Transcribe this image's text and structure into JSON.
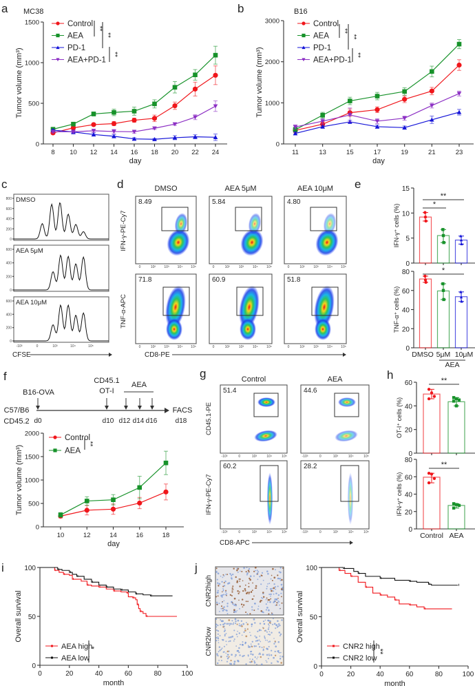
{
  "panel_letters": [
    "a",
    "b",
    "c",
    "d",
    "e",
    "f",
    "g",
    "h",
    "i",
    "j"
  ],
  "colors": {
    "control": "#f0161b",
    "aea": "#17922a",
    "pd1": "#1414d8",
    "aea_pd1": "#8c2fc4",
    "low": "#111111",
    "high": "#f0161b"
  },
  "chart_data": [
    {
      "id": "a",
      "type": "line",
      "title": "MC38",
      "xlabel": "day",
      "ylabel": "Tumor volume (mm³)",
      "x": [
        8,
        10,
        12,
        14,
        16,
        18,
        20,
        22,
        24
      ],
      "ylim": [
        0,
        1500
      ],
      "yticks": [
        0,
        500,
        1000,
        1500
      ],
      "legend_placement": "top-left",
      "series": [
        {
          "name": "Control",
          "marker": "circle",
          "values": [
            136,
            198,
            238,
            250,
            292,
            315,
            470,
            675,
            845
          ],
          "err": [
            15,
            20,
            15,
            25,
            25,
            40,
            45,
            85,
            115
          ]
        },
        {
          "name": "AEA",
          "marker": "square",
          "values": [
            181,
            244,
            369,
            388,
            403,
            493,
            697,
            850,
            1092
          ],
          "err": [
            15,
            20,
            25,
            40,
            50,
            50,
            70,
            65,
            110
          ]
        },
        {
          "name": "PD-1",
          "marker": "triangle-up",
          "values": [
            170,
            147,
            116,
            94,
            62,
            57,
            77,
            88,
            82
          ],
          "err": [
            10,
            25,
            20,
            20,
            15,
            10,
            25,
            25,
            40
          ]
        },
        {
          "name": "AEA+PD-1",
          "marker": "triangle-down",
          "values": [
            150,
            150,
            162,
            153,
            150,
            193,
            244,
            329,
            465
          ],
          "err": [
            15,
            15,
            20,
            25,
            20,
            15,
            15,
            30,
            65
          ]
        }
      ],
      "significance": [
        "**",
        "**",
        "**"
      ]
    },
    {
      "id": "b",
      "type": "line",
      "title": "B16",
      "xlabel": "day",
      "ylabel": "Tumor volume (mm³)",
      "x": [
        11,
        13,
        15,
        17,
        19,
        21,
        23
      ],
      "ylim": [
        0,
        3000
      ],
      "yticks": [
        0,
        1000,
        2000,
        3000
      ],
      "legend_placement": "top-left",
      "series": [
        {
          "name": "Control",
          "marker": "circle",
          "values": [
            330,
            481,
            761,
            833,
            1086,
            1287,
            1919
          ],
          "err": [
            60,
            60,
            90,
            70,
            80,
            90,
            130
          ]
        },
        {
          "name": "AEA",
          "marker": "square",
          "values": [
            347,
            700,
            1046,
            1164,
            1276,
            1763,
            2429
          ],
          "err": [
            60,
            70,
            90,
            90,
            90,
            130,
            110
          ]
        },
        {
          "name": "PD-1",
          "marker": "triangle-up",
          "values": [
            257,
            420,
            537,
            420,
            397,
            588,
            772
          ],
          "err": [
            40,
            40,
            40,
            40,
            40,
            90,
            70
          ]
        },
        {
          "name": "AEA+PD-1",
          "marker": "triangle-down",
          "values": [
            414,
            554,
            705,
            554,
            627,
            935,
            1226
          ],
          "err": [
            50,
            60,
            170,
            60,
            50,
            60,
            60
          ]
        }
      ],
      "significance": [
        "**",
        "**",
        "**"
      ]
    },
    {
      "id": "e-ifn",
      "type": "bar",
      "ylabel": "IFN-γ⁺ cells (%)",
      "ylim": [
        0,
        15
      ],
      "yticks": [
        0,
        5,
        10,
        15
      ],
      "categories": [
        "DMSO",
        "5μM",
        "10μM"
      ],
      "values": [
        9.2,
        5.5,
        4.6
      ],
      "points": [
        [
          10.1,
          9.2,
          8.4
        ],
        [
          6.7,
          5.5,
          4.1
        ],
        [
          5.4,
          4.6,
          3.8
        ]
      ],
      "significance": [
        {
          "from": 0,
          "to": 1,
          "label": "*"
        },
        {
          "from": 0,
          "to": 2,
          "label": "**"
        }
      ]
    },
    {
      "id": "e-tnf",
      "type": "bar",
      "ylabel": "TNF-α⁺ cells (%)",
      "ylim": [
        0,
        80
      ],
      "yticks": [
        0,
        20,
        40,
        60,
        80
      ],
      "categories": [
        "DMSO",
        "5μM",
        "10μM"
      ],
      "group_label": "AEA",
      "values": [
        72,
        59.5,
        53.5
      ],
      "points": [
        [
          75,
          71,
          68.5
        ],
        [
          67,
          60,
          50.5
        ],
        [
          58.5,
          53,
          48.5
        ]
      ],
      "significance": [
        {
          "from": 0,
          "to": 2,
          "label": "*"
        }
      ]
    },
    {
      "id": "f",
      "type": "line",
      "xlabel": "day",
      "ylabel": "Tumor volume (mm³)",
      "x": [
        10,
        12,
        14,
        16,
        18
      ],
      "ylim": [
        0,
        2000
      ],
      "yticks": [
        0,
        500,
        1000,
        1500,
        2000
      ],
      "legend_placement": "top-left",
      "series": [
        {
          "name": "Control",
          "marker": "circle",
          "values": [
            230,
            355,
            378,
            508,
            745
          ],
          "err": [
            40,
            100,
            110,
            120,
            170
          ]
        },
        {
          "name": "AEA",
          "marker": "square",
          "values": [
            255,
            552,
            578,
            840,
            1365
          ],
          "err": [
            50,
            90,
            110,
            240,
            250
          ]
        }
      ],
      "significance": [
        "**"
      ]
    },
    {
      "id": "h-ot1",
      "type": "bar",
      "ylabel": "OT-I⁺ cells (%)",
      "ylim": [
        0,
        60
      ],
      "yticks": [
        0,
        20,
        40,
        60
      ],
      "categories": [
        "Control",
        "AEA"
      ],
      "values": [
        50,
        43.5
      ],
      "points": [
        [
          54,
          51,
          48,
          46
        ],
        [
          47,
          46,
          45,
          44,
          40
        ]
      ],
      "significance": [
        {
          "from": 0,
          "to": 1,
          "label": "**"
        }
      ]
    },
    {
      "id": "h-ifn",
      "type": "bar",
      "ylabel": "IFN-γ⁺ cells (%)",
      "ylim": [
        0,
        80
      ],
      "yticks": [
        0,
        20,
        40,
        60,
        80
      ],
      "categories": [
        "Control",
        "AEA"
      ],
      "values": [
        59.5,
        27
      ],
      "points": [
        [
          64,
          63,
          58,
          53
        ],
        [
          29,
          28,
          27,
          24
        ]
      ],
      "significance": [
        {
          "from": 0,
          "to": 1,
          "label": "**"
        }
      ]
    },
    {
      "id": "i",
      "type": "line",
      "xlabel": "month",
      "ylabel": "Overall survival",
      "xlim": [
        0,
        100
      ],
      "ylim": [
        0,
        100
      ],
      "xticks": [
        0,
        20,
        40,
        60,
        80,
        100
      ],
      "yticks": [
        0,
        50,
        100
      ],
      "legend_placement": "bottom-left",
      "series": [
        {
          "name": "AEA high",
          "points": [
            [
              0,
              100
            ],
            [
              8,
              100
            ],
            [
              10,
              97
            ],
            [
              13,
              95
            ],
            [
              16,
              93
            ],
            [
              20,
              92
            ],
            [
              22,
              88
            ],
            [
              28,
              86
            ],
            [
              32,
              82
            ],
            [
              35,
              81
            ],
            [
              40,
              80
            ],
            [
              45,
              78
            ],
            [
              50,
              76
            ],
            [
              55,
              75
            ],
            [
              59,
              74
            ],
            [
              60,
              70
            ],
            [
              63,
              69
            ],
            [
              65,
              67
            ],
            [
              66,
              62
            ],
            [
              67,
              58
            ],
            [
              68,
              55
            ],
            [
              70,
              53
            ],
            [
              72,
              50
            ],
            [
              93,
              50
            ]
          ]
        },
        {
          "name": "AEA low",
          "points": [
            [
              0,
              100
            ],
            [
              9,
              100
            ],
            [
              12,
              98
            ],
            [
              15,
              97
            ],
            [
              20,
              95
            ],
            [
              22,
              93
            ],
            [
              25,
              91
            ],
            [
              30,
              88
            ],
            [
              35,
              85
            ],
            [
              40,
              82
            ],
            [
              45,
              80
            ],
            [
              50,
              78
            ],
            [
              55,
              77
            ],
            [
              60,
              75
            ],
            [
              65,
              73
            ],
            [
              70,
              72
            ],
            [
              75,
              71
            ],
            [
              90,
              71
            ]
          ]
        }
      ],
      "significance": [
        "*"
      ]
    },
    {
      "id": "j",
      "type": "line",
      "xlabel": "month",
      "ylabel": "Overall survival",
      "xlim": [
        0,
        100
      ],
      "ylim": [
        0,
        100
      ],
      "xticks": [
        0,
        20,
        40,
        60,
        80,
        100
      ],
      "yticks": [
        0,
        50,
        100
      ],
      "legend_placement": "bottom-left",
      "series": [
        {
          "name": "CNR2 high",
          "points": [
            [
              0,
              100
            ],
            [
              8,
              100
            ],
            [
              12,
              97
            ],
            [
              16,
              94
            ],
            [
              20,
              91
            ],
            [
              25,
              85
            ],
            [
              30,
              80
            ],
            [
              35,
              74
            ],
            [
              40,
              72
            ],
            [
              45,
              70
            ],
            [
              50,
              67
            ],
            [
              53,
              63
            ],
            [
              60,
              62
            ],
            [
              65,
              60
            ],
            [
              70,
              58
            ],
            [
              89,
              58
            ]
          ]
        },
        {
          "name": "CNR2 low",
          "points": [
            [
              0,
              100
            ],
            [
              9,
              100
            ],
            [
              15,
              99
            ],
            [
              22,
              96
            ],
            [
              25,
              94
            ],
            [
              30,
              91
            ],
            [
              40,
              89
            ],
            [
              50,
              87
            ],
            [
              60,
              86
            ],
            [
              65,
              85
            ],
            [
              73,
              83
            ],
            [
              75,
              82
            ],
            [
              93,
              82
            ]
          ]
        }
      ],
      "significance": [
        "**"
      ]
    }
  ],
  "histograms_c": {
    "xlabel": "CFSE",
    "xticks": [
      "-10³",
      "0",
      "10³",
      "10⁴",
      "10⁵"
    ],
    "panels": [
      {
        "label": "DMSO",
        "yticks": [
          0,
          200,
          400,
          600,
          800
        ]
      },
      {
        "label": "AEA 5μM",
        "yticks": [
          0,
          200,
          400,
          600
        ]
      },
      {
        "label": "AEA 10μM",
        "yticks": [
          0,
          200,
          400,
          600
        ]
      }
    ]
  },
  "flow_d": {
    "columns": [
      "DMSO",
      "AEA 5μM",
      "AEA 10μM"
    ],
    "row_ylabels": [
      "IFN-γ-PE-Cy7",
      "TNF-α-APC"
    ],
    "xlabel": "CD8-PE",
    "gate_values": [
      [
        "8.49",
        "5.84",
        "4.80"
      ],
      [
        "71.8",
        "60.9",
        "51.8"
      ]
    ],
    "ticks": [
      "0",
      "10²",
      "10³",
      "10⁴",
      "10⁵"
    ]
  },
  "schematic_f": {
    "host": [
      "C57/B6",
      "CD45.2"
    ],
    "tumor": "B16-OVA",
    "transfer": [
      "CD45.1",
      "OT-I"
    ],
    "treatment": "AEA",
    "readout": "FACS",
    "days": [
      "d0",
      "d10",
      "d12",
      "d14",
      "d16",
      "d18"
    ]
  },
  "flow_g": {
    "columns": [
      "Control",
      "AEA"
    ],
    "row_ylabels": [
      "CD45.1-PE",
      "IFN-γ-PE-Cy7"
    ],
    "xlabel": "CD8-APC",
    "gate_values": [
      [
        "51.4",
        "44.6"
      ],
      [
        "60.2",
        "28.2"
      ]
    ],
    "ticks": [
      "-10³",
      "0",
      "10³",
      "10⁴",
      "10⁵"
    ]
  },
  "ihc_j": {
    "labels": [
      "CNR2high",
      "CNR2low"
    ]
  }
}
